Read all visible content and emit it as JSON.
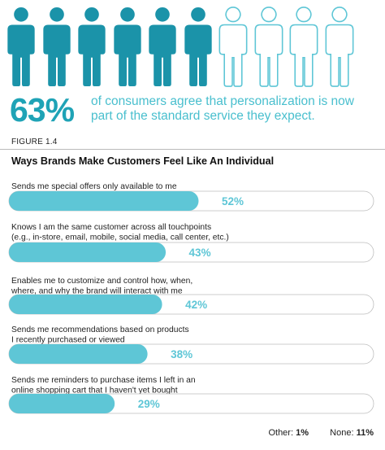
{
  "infographic": {
    "people": {
      "total": 10,
      "filled": 6,
      "filled_color": "#1b93a9",
      "outline_color": "#5ec6d6",
      "icon": "person-icon"
    },
    "stat_value": "63%",
    "stat_text": "of consumers agree that personalization is now part of the standard service they expect."
  },
  "figure_label": "FIGURE 1.4",
  "chart_data": {
    "type": "bar",
    "orientation": "horizontal",
    "title": "Ways Brands Make Customers Feel Like An Individual",
    "categories": [
      [
        "Sends me special offers only available to me"
      ],
      [
        "Knows I am the same customer across all touchpoints",
        "(e.g., in-store, email, mobile, social media, call center, etc.)"
      ],
      [
        "Enables me to customize and control how, when,",
        "where, and why the brand will interact with me"
      ],
      [
        "Sends me recommendations based on products",
        "I recently purchased or viewed"
      ],
      [
        "Sends me reminders to purchase items I left in an",
        "online shopping cart that I haven't yet bought"
      ]
    ],
    "values": [
      52,
      43,
      42,
      38,
      29
    ],
    "value_labels": [
      "52%",
      "43%",
      "42%",
      "38%",
      "29%"
    ],
    "xlim": [
      0,
      100
    ],
    "bar_color": "#5ec6d6",
    "track_color": "#ffffff",
    "label_color": "#ffffff"
  },
  "footer": {
    "other_label": "Other:",
    "other_value": "1%",
    "none_label": "None:",
    "none_value": "11%"
  }
}
